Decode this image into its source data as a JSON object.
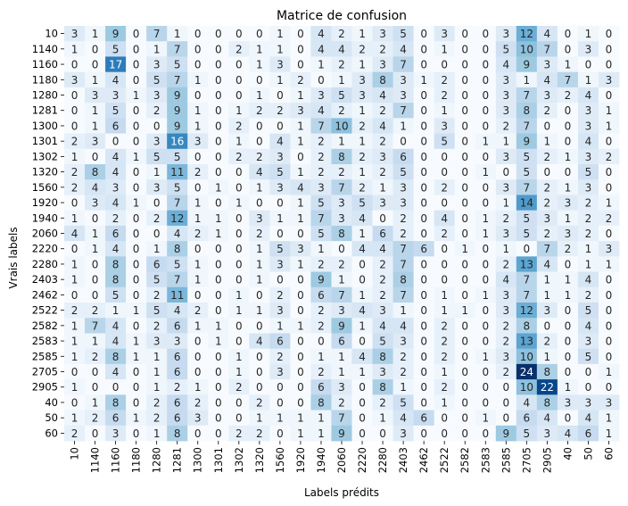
{
  "chart_data": {
    "type": "heatmap",
    "title": "Matrice de confusion",
    "xlabel": "Labels prédits",
    "ylabel": "Vrais labels",
    "labels": [
      "10",
      "1140",
      "1160",
      "1180",
      "1280",
      "1281",
      "1300",
      "1301",
      "1302",
      "1320",
      "1560",
      "1920",
      "1940",
      "2060",
      "2220",
      "2280",
      "2403",
      "2462",
      "2522",
      "2582",
      "2583",
      "2585",
      "2705",
      "2905",
      "40",
      "50",
      "60"
    ],
    "matrix": [
      [
        3,
        1,
        9,
        0,
        7,
        1,
        0,
        0,
        0,
        0,
        1,
        0,
        4,
        2,
        1,
        3,
        5,
        0,
        3,
        0,
        0,
        3,
        12,
        4,
        0,
        1,
        0
      ],
      [
        1,
        0,
        5,
        0,
        1,
        7,
        0,
        0,
        2,
        1,
        1,
        0,
        4,
        4,
        2,
        2,
        4,
        0,
        1,
        0,
        0,
        5,
        10,
        7,
        0,
        3,
        0
      ],
      [
        0,
        0,
        17,
        0,
        3,
        5,
        0,
        0,
        0,
        1,
        3,
        0,
        1,
        2,
        1,
        3,
        7,
        0,
        0,
        0,
        0,
        4,
        9,
        3,
        1,
        0,
        0
      ],
      [
        3,
        1,
        4,
        0,
        5,
        7,
        1,
        0,
        0,
        0,
        1,
        2,
        0,
        1,
        3,
        8,
        3,
        1,
        2,
        0,
        0,
        3,
        1,
        4,
        7,
        1,
        3
      ],
      [
        0,
        3,
        3,
        1,
        3,
        9,
        0,
        0,
        0,
        1,
        0,
        1,
        3,
        5,
        3,
        4,
        3,
        0,
        2,
        0,
        0,
        3,
        7,
        3,
        2,
        4,
        0
      ],
      [
        0,
        1,
        5,
        0,
        2,
        9,
        1,
        0,
        1,
        2,
        2,
        3,
        4,
        2,
        1,
        2,
        7,
        0,
        1,
        0,
        0,
        3,
        8,
        2,
        0,
        3,
        1
      ],
      [
        0,
        1,
        6,
        0,
        0,
        9,
        1,
        0,
        2,
        0,
        0,
        1,
        7,
        10,
        2,
        4,
        1,
        0,
        3,
        0,
        0,
        2,
        7,
        0,
        0,
        3,
        1
      ],
      [
        2,
        3,
        0,
        0,
        3,
        16,
        3,
        0,
        1,
        0,
        4,
        1,
        2,
        1,
        1,
        2,
        0,
        0,
        5,
        0,
        1,
        1,
        9,
        1,
        0,
        4,
        0
      ],
      [
        1,
        0,
        4,
        1,
        5,
        5,
        0,
        0,
        2,
        2,
        3,
        0,
        2,
        8,
        2,
        3,
        6,
        0,
        0,
        0,
        0,
        3,
        5,
        2,
        1,
        3,
        2
      ],
      [
        2,
        8,
        4,
        0,
        1,
        11,
        2,
        0,
        0,
        4,
        5,
        1,
        2,
        2,
        1,
        2,
        5,
        0,
        0,
        0,
        1,
        0,
        5,
        0,
        0,
        5,
        0
      ],
      [
        2,
        4,
        3,
        0,
        3,
        5,
        0,
        1,
        0,
        1,
        3,
        4,
        3,
        7,
        2,
        1,
        3,
        0,
        2,
        0,
        0,
        3,
        7,
        2,
        1,
        3,
        0
      ],
      [
        0,
        3,
        4,
        1,
        0,
        7,
        1,
        0,
        1,
        0,
        0,
        1,
        5,
        3,
        5,
        3,
        3,
        0,
        0,
        0,
        0,
        1,
        14,
        2,
        3,
        2,
        1
      ],
      [
        1,
        0,
        2,
        0,
        2,
        12,
        1,
        1,
        0,
        3,
        1,
        1,
        7,
        3,
        4,
        0,
        2,
        0,
        4,
        0,
        1,
        2,
        5,
        3,
        1,
        2,
        2
      ],
      [
        4,
        1,
        6,
        0,
        0,
        4,
        2,
        1,
        0,
        2,
        0,
        0,
        5,
        8,
        1,
        6,
        2,
        0,
        2,
        0,
        1,
        3,
        5,
        2,
        3,
        2,
        0
      ],
      [
        0,
        1,
        4,
        0,
        1,
        8,
        0,
        0,
        0,
        1,
        5,
        3,
        1,
        0,
        4,
        4,
        7,
        6,
        0,
        1,
        0,
        1,
        0,
        7,
        2,
        1,
        3
      ],
      [
        1,
        0,
        8,
        0,
        6,
        5,
        1,
        0,
        0,
        1,
        3,
        1,
        2,
        2,
        0,
        2,
        7,
        0,
        0,
        0,
        0,
        2,
        13,
        4,
        0,
        1,
        1
      ],
      [
        1,
        0,
        8,
        0,
        5,
        7,
        1,
        0,
        0,
        1,
        0,
        0,
        9,
        1,
        0,
        2,
        8,
        0,
        0,
        0,
        0,
        4,
        7,
        1,
        1,
        4,
        0
      ],
      [
        0,
        0,
        5,
        0,
        2,
        11,
        0,
        0,
        1,
        0,
        2,
        0,
        6,
        7,
        1,
        2,
        7,
        0,
        1,
        0,
        1,
        3,
        7,
        1,
        1,
        2,
        0
      ],
      [
        2,
        2,
        1,
        1,
        5,
        4,
        2,
        0,
        1,
        1,
        3,
        0,
        2,
        3,
        4,
        3,
        1,
        0,
        1,
        1,
        0,
        3,
        12,
        3,
        0,
        5,
        0
      ],
      [
        1,
        7,
        4,
        0,
        2,
        6,
        1,
        1,
        0,
        0,
        1,
        1,
        2,
        9,
        1,
        4,
        4,
        0,
        2,
        0,
        0,
        2,
        8,
        0,
        0,
        4,
        0
      ],
      [
        1,
        1,
        4,
        1,
        3,
        3,
        0,
        1,
        0,
        4,
        6,
        0,
        0,
        6,
        0,
        5,
        3,
        0,
        2,
        0,
        0,
        2,
        13,
        2,
        0,
        3,
        0
      ],
      [
        1,
        2,
        8,
        1,
        1,
        6,
        0,
        0,
        1,
        0,
        2,
        0,
        1,
        1,
        4,
        8,
        2,
        0,
        2,
        0,
        1,
        3,
        10,
        1,
        0,
        5,
        0
      ],
      [
        0,
        0,
        4,
        0,
        1,
        6,
        0,
        0,
        1,
        0,
        3,
        0,
        2,
        1,
        1,
        3,
        2,
        0,
        1,
        0,
        0,
        2,
        24,
        8,
        0,
        0,
        1
      ],
      [
        1,
        0,
        0,
        0,
        1,
        2,
        1,
        0,
        2,
        0,
        0,
        0,
        6,
        3,
        0,
        8,
        1,
        0,
        2,
        0,
        0,
        0,
        10,
        22,
        1,
        0,
        0
      ],
      [
        0,
        1,
        8,
        0,
        2,
        6,
        2,
        0,
        0,
        2,
        0,
        0,
        8,
        2,
        0,
        2,
        5,
        0,
        1,
        0,
        0,
        0,
        4,
        8,
        3,
        3,
        3
      ],
      [
        1,
        2,
        6,
        1,
        2,
        6,
        3,
        0,
        0,
        1,
        1,
        1,
        1,
        7,
        0,
        1,
        4,
        6,
        0,
        0,
        1,
        0,
        6,
        4,
        0,
        4,
        1
      ],
      [
        2,
        0,
        3,
        0,
        1,
        8,
        0,
        0,
        2,
        2,
        0,
        1,
        1,
        9,
        0,
        0,
        3,
        0,
        0,
        0,
        0,
        9,
        5,
        3,
        4,
        6,
        1
      ]
    ],
    "vmin": 0,
    "vmax": 24,
    "colormap": "Blues",
    "colors": {
      "low": "#f7fbff",
      "high": "#08306b"
    },
    "colorbar": false
  }
}
